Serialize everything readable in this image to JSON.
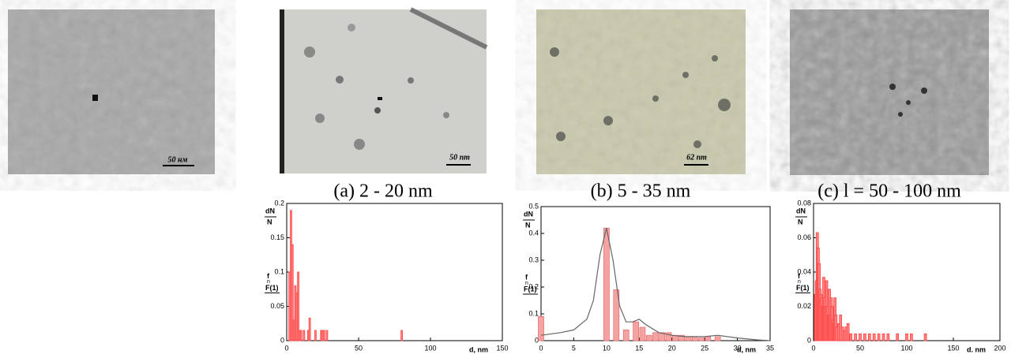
{
  "images": [
    {
      "scale_label": "50 нм"
    },
    {
      "scale_label": "50 nm",
      "caption": "(a) 2 - 20 nm"
    },
    {
      "scale_label": "62 nm",
      "caption": "(b) 5 - 35 nm"
    },
    {
      "caption": "(c) l = 50 - 100 nm"
    }
  ],
  "chart_data": [
    {
      "type": "bar",
      "color": "#ff3b3b",
      "fill": "#ff8080",
      "ylabel": [
        "dN",
        "N"
      ],
      "ylabel2": [
        "f",
        "n",
        "F(1)"
      ],
      "xlabel": "d, nm",
      "x": [
        2,
        3,
        4,
        5,
        6,
        7,
        8,
        9,
        10,
        12,
        15,
        16,
        20,
        24,
        25,
        26,
        28,
        80
      ],
      "values": [
        0.1,
        0.19,
        0.14,
        0.03,
        0.08,
        0.07,
        0.1,
        0.015,
        0.015,
        0.015,
        0.015,
        0.033,
        0.015,
        0.015,
        0.015,
        0.015,
        0.015,
        0.015
      ],
      "xlim": [
        0,
        150
      ],
      "xticks": [
        0,
        50,
        100,
        150
      ],
      "ylim": [
        0,
        0.2
      ],
      "yticks": [
        0,
        0.05,
        0.1,
        0.15,
        0.2
      ]
    },
    {
      "type": "bar",
      "color": "#e86a6a",
      "fill": "#f4a3a3",
      "ylabel": [
        "dN",
        "N"
      ],
      "ylabel2": [
        "f",
        "n",
        "F(1)"
      ],
      "xlabel": "d, nm",
      "x": [
        0,
        10,
        11.5,
        13,
        14.5,
        15.5,
        16.5,
        17.5,
        18.5,
        19.5,
        20.5,
        21.5,
        22.5,
        23.5,
        24.5,
        25.5,
        27
      ],
      "values": [
        0.09,
        0.42,
        0.19,
        0.04,
        0.07,
        0.05,
        0.02,
        0.03,
        0.03,
        0.03,
        0.02,
        0.02,
        0.015,
        0.015,
        0.01,
        0.015,
        0.015
      ],
      "curve": {
        "color": "#666666",
        "x": [
          0,
          3,
          5,
          7,
          8,
          9,
          10,
          11,
          12,
          13,
          14,
          15,
          16,
          18,
          20,
          22,
          25,
          27,
          30,
          33,
          35
        ],
        "values": [
          0.02,
          0.03,
          0.04,
          0.08,
          0.15,
          0.32,
          0.42,
          0.3,
          0.13,
          0.07,
          0.07,
          0.08,
          0.06,
          0.03,
          0.02,
          0.015,
          0.015,
          0.02,
          0.01,
          0.003,
          0.0
        ]
      },
      "xlim": [
        0,
        35
      ],
      "xticks": [
        0,
        5,
        10,
        15,
        20,
        25,
        30,
        35
      ],
      "ylim": [
        0,
        0.5
      ],
      "yticks": [
        0,
        0.1,
        0.2,
        0.3,
        0.4,
        0.5
      ]
    },
    {
      "type": "bar",
      "color": "#ff3b3b",
      "fill": "#ff8080",
      "ylabel": [
        "dN",
        "N"
      ],
      "ylabel2": [
        "f",
        "n",
        "F(1)"
      ],
      "xlabel": "d. nm",
      "x": [
        2,
        3,
        4,
        5,
        6,
        7,
        8,
        9,
        10,
        11,
        12,
        13,
        14,
        15,
        16,
        17,
        18,
        19,
        20,
        21,
        22,
        23,
        24,
        25,
        27,
        29,
        31,
        33,
        35,
        37,
        40,
        45,
        50,
        55,
        60,
        65,
        70,
        75,
        80,
        90,
        100,
        105,
        120
      ],
      "values": [
        0.027,
        0.035,
        0.063,
        0.054,
        0.045,
        0.03,
        0.027,
        0.025,
        0.02,
        0.037,
        0.025,
        0.02,
        0.035,
        0.02,
        0.015,
        0.03,
        0.015,
        0.025,
        0.02,
        0.012,
        0.01,
        0.025,
        0.015,
        0.008,
        0.01,
        0.015,
        0.008,
        0.006,
        0.008,
        0.01,
        0.004,
        0.004,
        0.004,
        0.004,
        0.004,
        0.004,
        0.004,
        0.004,
        0.004,
        0.004,
        0.004,
        0.004,
        0.004
      ],
      "xlim": [
        0,
        200
      ],
      "xticks": [
        0,
        50,
        100,
        150,
        200
      ],
      "ylim": [
        0,
        0.08
      ],
      "yticks": [
        0,
        0.02,
        0.04,
        0.06,
        0.08
      ]
    }
  ]
}
